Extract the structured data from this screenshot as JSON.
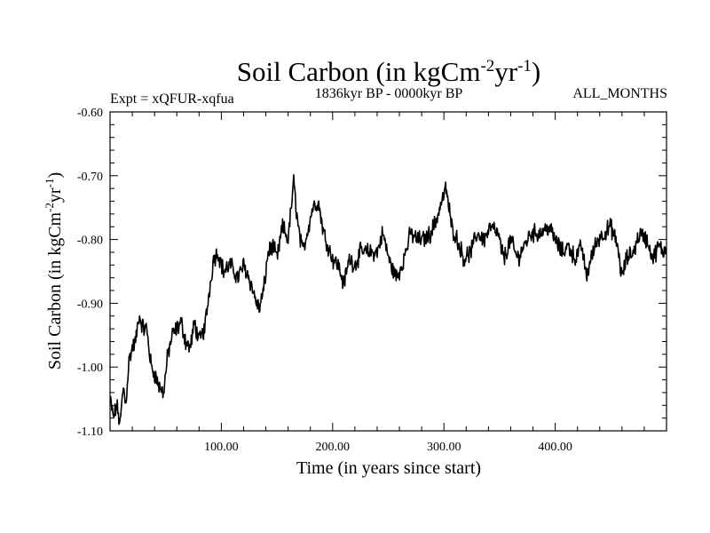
{
  "chart_data": {
    "type": "line",
    "title": {
      "prefix": "Soil Carbon (in kgCm",
      "sup1": "-2",
      "mid": "yr",
      "sup2": "-1",
      "suffix": ")"
    },
    "subtitle_left": "Expt = xQFUR-xqfua",
    "subtitle_center": "1836kyr BP - 0000kyr BP",
    "subtitle_right": "ALL_MONTHS",
    "xlabel": "Time (in years since start)",
    "ylabel": {
      "prefix": "Soil Carbon (in kgCm",
      "sup1": "-2",
      "mid": "yr",
      "sup2": "-1",
      "suffix": ")"
    },
    "xlim": [
      0,
      500
    ],
    "ylim": [
      -1.1,
      -0.6
    ],
    "x_major_ticks": [
      100,
      200,
      300,
      400
    ],
    "x_tick_labels": [
      "100.00",
      "200.00",
      "300.00",
      "400.00"
    ],
    "y_major_ticks": [
      -1.1,
      -1.0,
      -0.9,
      -0.8,
      -0.7,
      -0.6
    ],
    "y_tick_labels": [
      "-1.10",
      "-1.00",
      "-0.90",
      "-0.80",
      "-0.70",
      "-0.60"
    ],
    "line_color": "#000000",
    "anchors": [
      [
        0,
        -1.05
      ],
      [
        3,
        -1.08
      ],
      [
        6,
        -1.06
      ],
      [
        9,
        -1.09
      ],
      [
        12,
        -1.03
      ],
      [
        14,
        -1.06
      ],
      [
        17,
        -0.99
      ],
      [
        20,
        -0.97
      ],
      [
        23,
        -0.96
      ],
      [
        26,
        -0.92
      ],
      [
        30,
        -0.94
      ],
      [
        33,
        -0.94
      ],
      [
        37,
        -1.0
      ],
      [
        40,
        -1.01
      ],
      [
        44,
        -1.03
      ],
      [
        48,
        -1.04
      ],
      [
        52,
        -0.98
      ],
      [
        56,
        -0.95
      ],
      [
        60,
        -0.94
      ],
      [
        64,
        -0.93
      ],
      [
        68,
        -0.96
      ],
      [
        72,
        -0.97
      ],
      [
        76,
        -0.93
      ],
      [
        80,
        -0.96
      ],
      [
        85,
        -0.94
      ],
      [
        90,
        -0.87
      ],
      [
        93,
        -0.83
      ],
      [
        97,
        -0.82
      ],
      [
        102,
        -0.85
      ],
      [
        108,
        -0.84
      ],
      [
        115,
        -0.86
      ],
      [
        120,
        -0.84
      ],
      [
        125,
        -0.86
      ],
      [
        130,
        -0.89
      ],
      [
        134,
        -0.91
      ],
      [
        138,
        -0.88
      ],
      [
        142,
        -0.82
      ],
      [
        146,
        -0.81
      ],
      [
        150,
        -0.83
      ],
      [
        155,
        -0.78
      ],
      [
        160,
        -0.8
      ],
      [
        165,
        -0.71
      ],
      [
        169,
        -0.78
      ],
      [
        173,
        -0.82
      ],
      [
        177,
        -0.79
      ],
      [
        182,
        -0.75
      ],
      [
        187,
        -0.74
      ],
      [
        192,
        -0.79
      ],
      [
        196,
        -0.81
      ],
      [
        200,
        -0.83
      ],
      [
        205,
        -0.84
      ],
      [
        210,
        -0.87
      ],
      [
        215,
        -0.83
      ],
      [
        220,
        -0.84
      ],
      [
        225,
        -0.82
      ],
      [
        232,
        -0.82
      ],
      [
        240,
        -0.82
      ],
      [
        245,
        -0.79
      ],
      [
        252,
        -0.84
      ],
      [
        258,
        -0.86
      ],
      [
        264,
        -0.83
      ],
      [
        270,
        -0.79
      ],
      [
        276,
        -0.8
      ],
      [
        282,
        -0.8
      ],
      [
        288,
        -0.79
      ],
      [
        293,
        -0.77
      ],
      [
        298,
        -0.74
      ],
      [
        302,
        -0.72
      ],
      [
        307,
        -0.78
      ],
      [
        312,
        -0.8
      ],
      [
        318,
        -0.83
      ],
      [
        324,
        -0.82
      ],
      [
        330,
        -0.79
      ],
      [
        336,
        -0.8
      ],
      [
        342,
        -0.78
      ],
      [
        348,
        -0.79
      ],
      [
        354,
        -0.83
      ],
      [
        360,
        -0.8
      ],
      [
        366,
        -0.83
      ],
      [
        372,
        -0.81
      ],
      [
        378,
        -0.79
      ],
      [
        386,
        -0.79
      ],
      [
        394,
        -0.78
      ],
      [
        400,
        -0.8
      ],
      [
        406,
        -0.82
      ],
      [
        412,
        -0.81
      ],
      [
        418,
        -0.83
      ],
      [
        424,
        -0.81
      ],
      [
        428,
        -0.86
      ],
      [
        432,
        -0.83
      ],
      [
        438,
        -0.8
      ],
      [
        444,
        -0.79
      ],
      [
        450,
        -0.78
      ],
      [
        456,
        -0.81
      ],
      [
        460,
        -0.86
      ],
      [
        464,
        -0.83
      ],
      [
        470,
        -0.82
      ],
      [
        476,
        -0.79
      ],
      [
        482,
        -0.8
      ],
      [
        488,
        -0.83
      ],
      [
        493,
        -0.81
      ],
      [
        497,
        -0.82
      ],
      [
        500,
        -0.81
      ]
    ]
  }
}
